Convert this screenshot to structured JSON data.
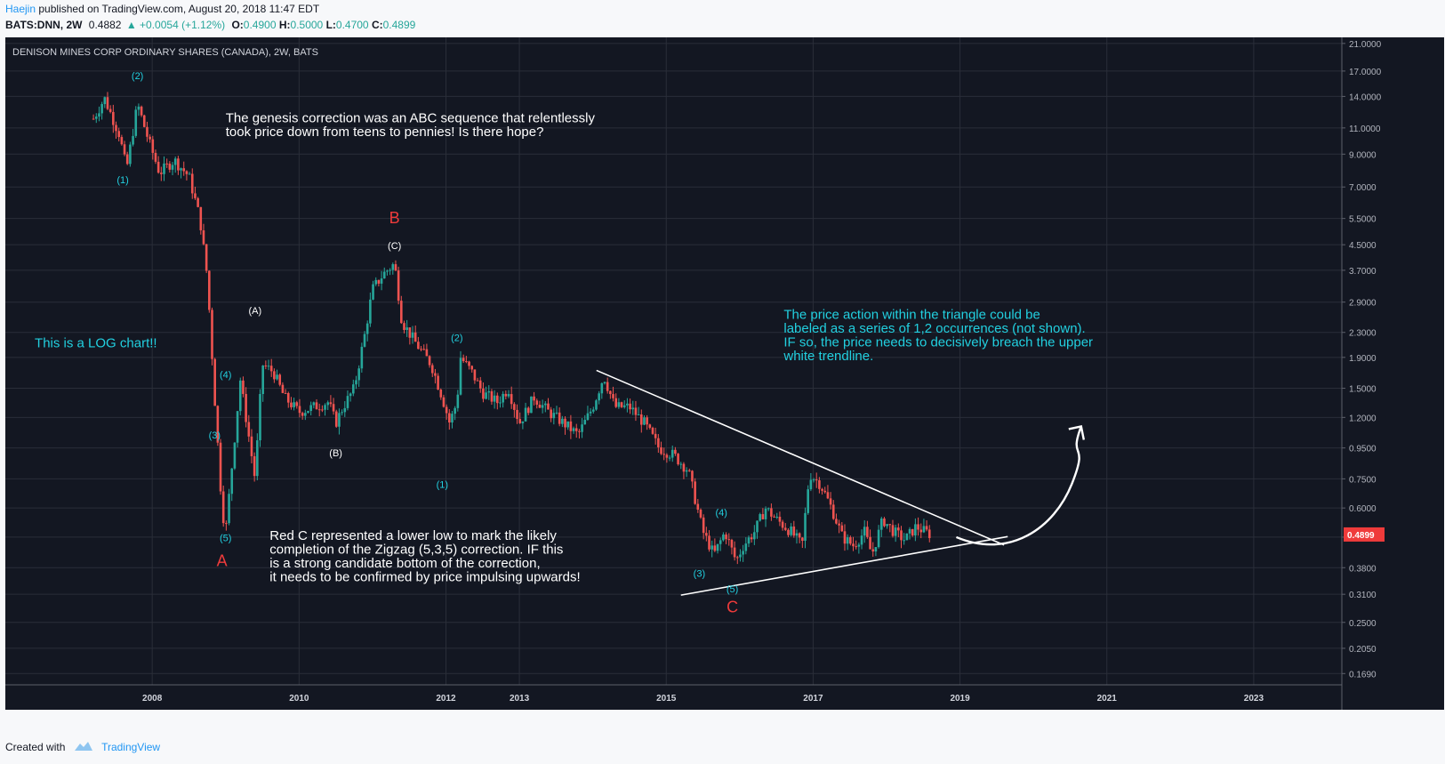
{
  "header": {
    "author": "Haejin",
    "published_text": "published on TradingView.com, August 20, 2018 11:47 EDT",
    "symbol": "BATS:DNN, 2W",
    "last": "0.4882",
    "change": "▲ +0.0054 (+1.12%)",
    "o_label": "O:",
    "o_value": "0.4900",
    "h_label": "H:",
    "h_value": "0.5000",
    "l_label": "L:",
    "l_value": "0.4700",
    "c_label": "C:",
    "c_value": "0.4899"
  },
  "footer": {
    "created_with": "Created with",
    "brand": "TradingView"
  },
  "colors": {
    "up": "#26a69a",
    "down": "#ef5350",
    "bg": "#131722",
    "cyan": "#22d0e0",
    "red_label": "#ef3b3b",
    "price_tag": "#ef3b3b"
  },
  "chart_data": {
    "type": "candlestick",
    "title": "DENISON MINES CORP ORDINARY SHARES (CANADA), 2W, BATS",
    "y_scale": "log",
    "ylim": [
      0.155,
      22.0
    ],
    "y_ticks": [
      "21.0000",
      "17.0000",
      "14.0000",
      "11.0000",
      "9.0000",
      "7.0000",
      "5.5000",
      "4.5000",
      "3.7000",
      "2.9000",
      "2.3000",
      "1.9000",
      "1.5000",
      "1.2000",
      "0.9500",
      "0.7500",
      "0.6000",
      "0.4800",
      "0.3800",
      "0.3100",
      "0.2500",
      "0.2050",
      "0.1690"
    ],
    "x_ticks": [
      "2008",
      "2010",
      "2012",
      "2013",
      "2015",
      "2017",
      "2019",
      "2021",
      "2023"
    ],
    "last_price_label": "0.4899",
    "grid": true,
    "price_path": [
      [
        2007.2,
        11.8
      ],
      [
        2007.35,
        13.8
      ],
      [
        2007.55,
        10.5
      ],
      [
        2007.65,
        8.0
      ],
      [
        2007.8,
        13.2
      ],
      [
        2007.95,
        10.0
      ],
      [
        2008.1,
        7.8
      ],
      [
        2008.3,
        8.6
      ],
      [
        2008.5,
        7.6
      ],
      [
        2008.65,
        5.5
      ],
      [
        2008.75,
        3.5
      ],
      [
        2008.85,
        1.4
      ],
      [
        2008.95,
        0.6
      ],
      [
        2009.0,
        0.5
      ],
      [
        2009.1,
        0.9
      ],
      [
        2009.2,
        1.6
      ],
      [
        2009.3,
        1.1
      ],
      [
        2009.4,
        0.75
      ],
      [
        2009.5,
        1.8
      ],
      [
        2009.65,
        1.7
      ],
      [
        2009.8,
        1.4
      ],
      [
        2010.0,
        1.25
      ],
      [
        2010.2,
        1.3
      ],
      [
        2010.4,
        1.35
      ],
      [
        2010.5,
        1.15
      ],
      [
        2010.6,
        1.3
      ],
      [
        2010.75,
        1.5
      ],
      [
        2010.9,
        2.3
      ],
      [
        2011.0,
        3.2
      ],
      [
        2011.15,
        3.6
      ],
      [
        2011.3,
        3.9
      ],
      [
        2011.4,
        2.5
      ],
      [
        2011.6,
        2.1
      ],
      [
        2011.8,
        1.8
      ],
      [
        2011.95,
        1.4
      ],
      [
        2012.05,
        1.15
      ],
      [
        2012.15,
        1.35
      ],
      [
        2012.2,
        1.9
      ],
      [
        2012.35,
        1.7
      ],
      [
        2012.5,
        1.45
      ],
      [
        2012.7,
        1.35
      ],
      [
        2012.85,
        1.5
      ],
      [
        2013.0,
        1.15
      ],
      [
        2013.2,
        1.4
      ],
      [
        2013.4,
        1.25
      ],
      [
        2013.6,
        1.15
      ],
      [
        2013.8,
        1.05
      ],
      [
        2014.0,
        1.3
      ],
      [
        2014.15,
        1.65
      ],
      [
        2014.3,
        1.3
      ],
      [
        2014.5,
        1.3
      ],
      [
        2014.7,
        1.15
      ],
      [
        2014.9,
        0.95
      ],
      [
        2015.1,
        0.9
      ],
      [
        2015.3,
        0.8
      ],
      [
        2015.5,
        0.5
      ],
      [
        2015.65,
        0.42
      ],
      [
        2015.8,
        0.5
      ],
      [
        2015.95,
        0.4
      ],
      [
        2016.05,
        0.45
      ],
      [
        2016.2,
        0.5
      ],
      [
        2016.35,
        0.6
      ],
      [
        2016.5,
        0.55
      ],
      [
        2016.7,
        0.5
      ],
      [
        2016.85,
        0.45
      ],
      [
        2016.95,
        0.78
      ],
      [
        2017.1,
        0.72
      ],
      [
        2017.25,
        0.6
      ],
      [
        2017.4,
        0.48
      ],
      [
        2017.55,
        0.45
      ],
      [
        2017.7,
        0.5
      ],
      [
        2017.8,
        0.42
      ],
      [
        2017.95,
        0.55
      ],
      [
        2018.1,
        0.5
      ],
      [
        2018.25,
        0.47
      ],
      [
        2018.4,
        0.52
      ],
      [
        2018.6,
        0.49
      ]
    ],
    "trendlines": [
      {
        "name": "upper",
        "from": [
          2014.05,
          1.72
        ],
        "to": [
          2019.6,
          0.452
        ]
      },
      {
        "name": "lower",
        "from": [
          2015.2,
          0.308
        ],
        "to": [
          2019.65,
          0.482
        ]
      }
    ],
    "projection_arrow": {
      "from": [
        2018.95,
        0.48
      ],
      "to": [
        2020.65,
        1.12
      ]
    },
    "wave_labels": [
      {
        "text": "(2)",
        "x": 2007.8,
        "y": 16.0,
        "color": "cyan"
      },
      {
        "text": "(1)",
        "x": 2007.6,
        "y": 7.2,
        "color": "cyan"
      },
      {
        "text": "(4)",
        "x": 2009.0,
        "y": 1.62,
        "color": "cyan"
      },
      {
        "text": "(3)",
        "x": 2008.85,
        "y": 1.02,
        "color": "cyan"
      },
      {
        "text": "(5)",
        "x": 2009.0,
        "y": 0.465,
        "color": "cyan"
      },
      {
        "text": "(A)",
        "x": 2009.4,
        "y": 2.65,
        "color": "white"
      },
      {
        "text": "(B)",
        "x": 2010.5,
        "y": 0.89,
        "color": "white"
      },
      {
        "text": "(C)",
        "x": 2011.3,
        "y": 4.35,
        "color": "white"
      },
      {
        "text": "(2)",
        "x": 2012.15,
        "y": 2.15,
        "color": "cyan"
      },
      {
        "text": "(1)",
        "x": 2011.95,
        "y": 0.7,
        "color": "cyan"
      },
      {
        "text": "(4)",
        "x": 2015.75,
        "y": 0.565,
        "color": "cyan"
      },
      {
        "text": "(3)",
        "x": 2015.45,
        "y": 0.355,
        "color": "cyan"
      },
      {
        "text": "(5)",
        "x": 2015.9,
        "y": 0.315,
        "color": "cyan"
      },
      {
        "text": "A",
        "x": 2008.95,
        "y": 0.385,
        "color": "red"
      },
      {
        "text": "B",
        "x": 2011.3,
        "y": 5.3,
        "color": "red"
      },
      {
        "text": "C",
        "x": 2015.9,
        "y": 0.27,
        "color": "red"
      }
    ],
    "annotations": [
      {
        "lines": [
          "The genesis correction was an ABC sequence that relentlessly",
          "took price down from teens to pennies! Is there hope?"
        ],
        "color": "white",
        "x": 2009.0,
        "y": 11.5
      },
      {
        "lines": [
          "This is a LOG chart!!"
        ],
        "color": "cyan",
        "x": 2006.4,
        "y": 2.05
      },
      {
        "lines": [
          "The price action within the triangle could be",
          "labeled as a series of 1,2 occurrences (not shown).",
          "IF so, the price needs to decisively breach the upper",
          "white trendline."
        ],
        "color": "cyan",
        "x": 2016.6,
        "y": 2.55
      },
      {
        "lines": [
          "Red C represented a lower low to mark the likely",
          "completion of the Zigzag (5,3,5) correction. IF this",
          "is a strong candidate bottom of the correction,",
          "it needs to be confirmed by price impulsing upwards!"
        ],
        "color": "white",
        "x": 2009.6,
        "y": 0.47
      }
    ]
  }
}
